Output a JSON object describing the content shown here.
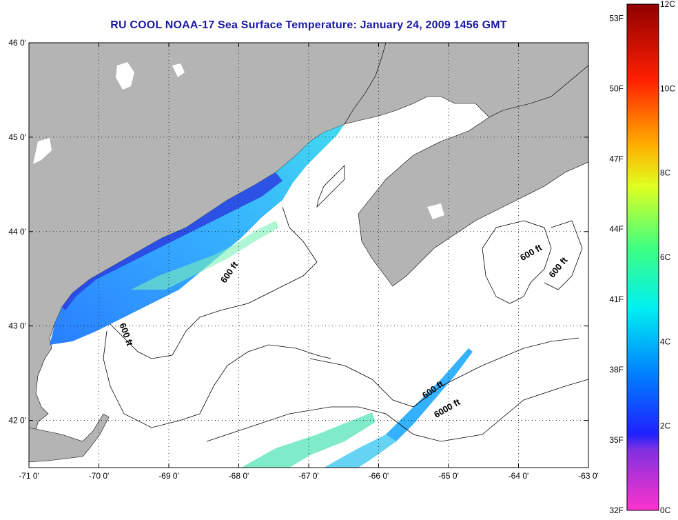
{
  "title": "RU COOL  NOAA-17  Sea Surface Temperature:  January 24, 2009 1456 GMT",
  "map": {
    "lon_range": [
      -71,
      -63
    ],
    "lat_range": [
      41.5,
      46.0
    ],
    "lat_ticks": [
      {
        "value": 46,
        "label": "46 0'"
      },
      {
        "value": 45,
        "label": "45 0'"
      },
      {
        "value": 44,
        "label": "44 0'"
      },
      {
        "value": 43,
        "label": "43 0'"
      },
      {
        "value": 42,
        "label": "42 0'"
      }
    ],
    "lon_ticks": [
      {
        "value": -71,
        "label": "-71 0'"
      },
      {
        "value": -70,
        "label": "-70 0'"
      },
      {
        "value": -69,
        "label": "-69 0'"
      },
      {
        "value": -68,
        "label": "-68 0'"
      },
      {
        "value": -67,
        "label": "-67 0'"
      },
      {
        "value": -66,
        "label": "-66 0'"
      },
      {
        "value": -65,
        "label": "-65 0'"
      },
      {
        "value": -64,
        "label": "-64 0'"
      },
      {
        "value": -63,
        "label": "-63 0'"
      }
    ],
    "contour_labels": [
      {
        "text": "600 ft",
        "lon": -68.1,
        "lat": 43.55,
        "angle": -55
      },
      {
        "text": "600 ft",
        "lon": -69.65,
        "lat": 42.9,
        "angle": 70
      },
      {
        "text": "600 ft",
        "lon": -63.8,
        "lat": 43.75,
        "angle": -30
      },
      {
        "text": "600 ft",
        "lon": -63.4,
        "lat": 43.6,
        "angle": -50
      },
      {
        "text": "600 ft",
        "lon": -65.2,
        "lat": 42.3,
        "angle": -35
      },
      {
        "text": "6000 ft",
        "lon": -65.0,
        "lat": 42.1,
        "angle": -30
      }
    ],
    "colors": {
      "land": "#b4b4b4",
      "water": "#ffffff",
      "grid": "#000000"
    }
  },
  "colorbar": {
    "f_labels": [
      "53F",
      "50F",
      "47F",
      "44F",
      "41F",
      "38F",
      "35F",
      "32F"
    ],
    "c_labels": [
      "12C",
      "10C",
      "8C",
      "6C",
      "4C",
      "2C",
      "0C"
    ],
    "f_range": [
      32,
      53.6
    ],
    "c_range": [
      0,
      12
    ]
  }
}
